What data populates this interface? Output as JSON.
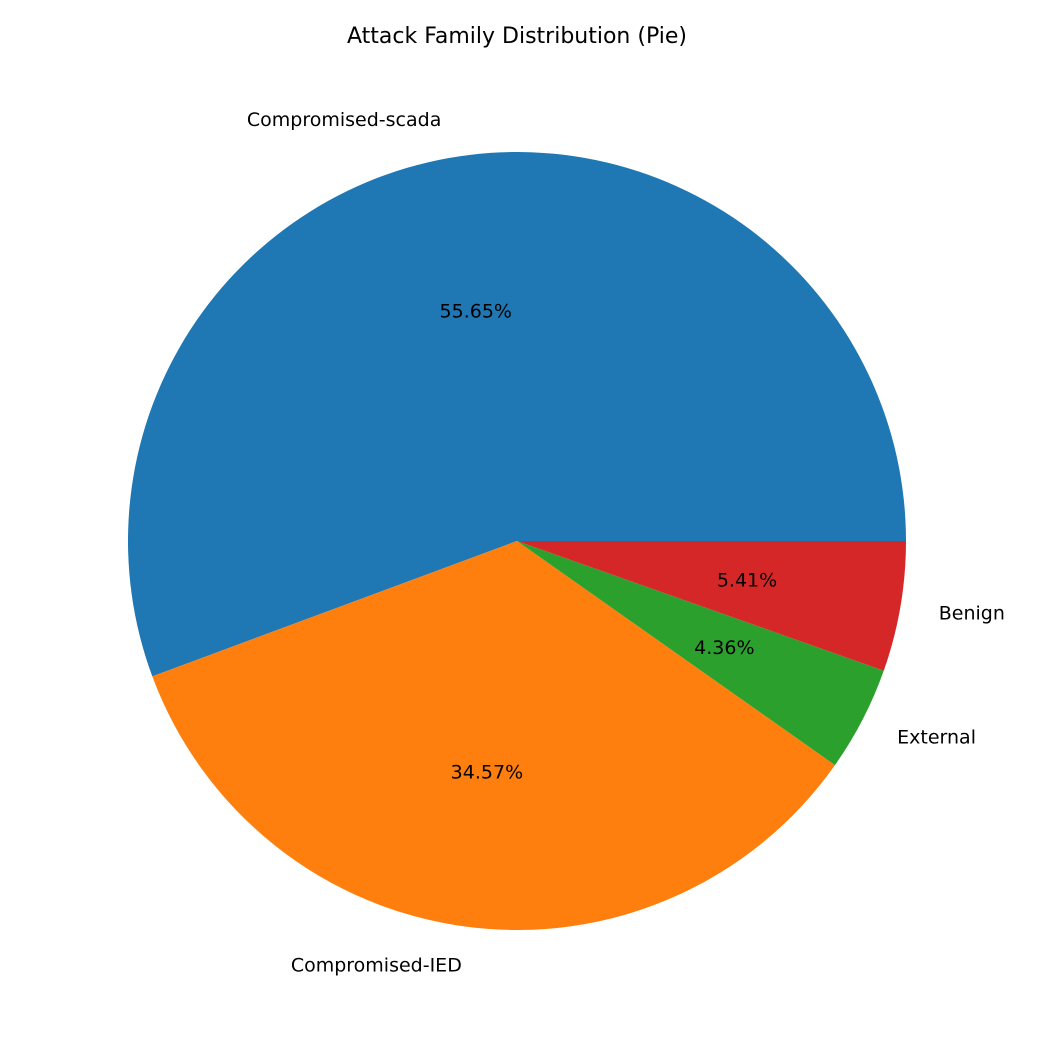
{
  "chart_data": {
    "type": "pie",
    "title": "Attack Family Distribution (Pie)",
    "categories": [
      "Compromised-scada",
      "Compromised-IED",
      "External",
      "Benign"
    ],
    "values": [
      55.65,
      34.57,
      4.36,
      5.41
    ],
    "value_labels": [
      "55.65%",
      "34.57%",
      "4.36%",
      "5.41%"
    ],
    "colors": [
      "#1f77b4",
      "#ff7f0e",
      "#2ca02c",
      "#d62728"
    ],
    "start_angle_deg": 0,
    "direction": "counterclockwise",
    "legend": "none"
  }
}
